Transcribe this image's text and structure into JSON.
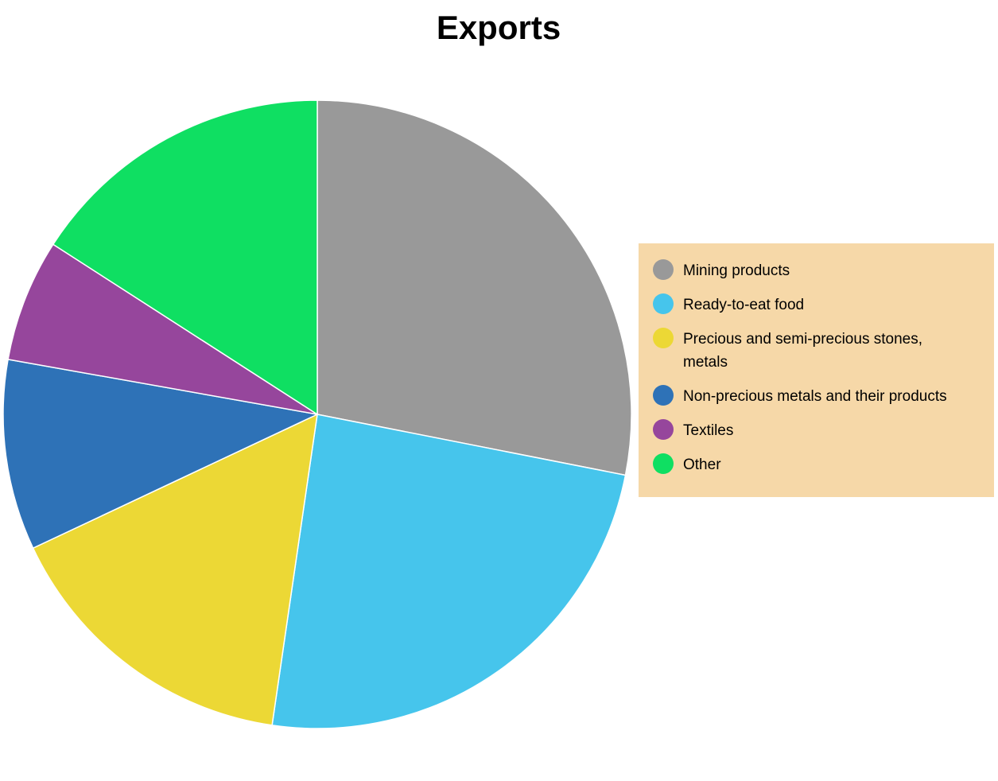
{
  "chart_data": {
    "type": "pie",
    "title": "Exports",
    "categories": [
      "Mining products",
      "Ready-to-eat food",
      "Precious and semi-precious stones, metals",
      "Non-precious metals and their products",
      "Textiles",
      "Other"
    ],
    "values": [
      28.1,
      24.2,
      15.7,
      9.8,
      6.3,
      15.9
    ],
    "colors": [
      "#999999",
      "#46c5ec",
      "#ecd835",
      "#2e72b7",
      "#96469c",
      "#0fdf62"
    ],
    "legend": "right"
  }
}
